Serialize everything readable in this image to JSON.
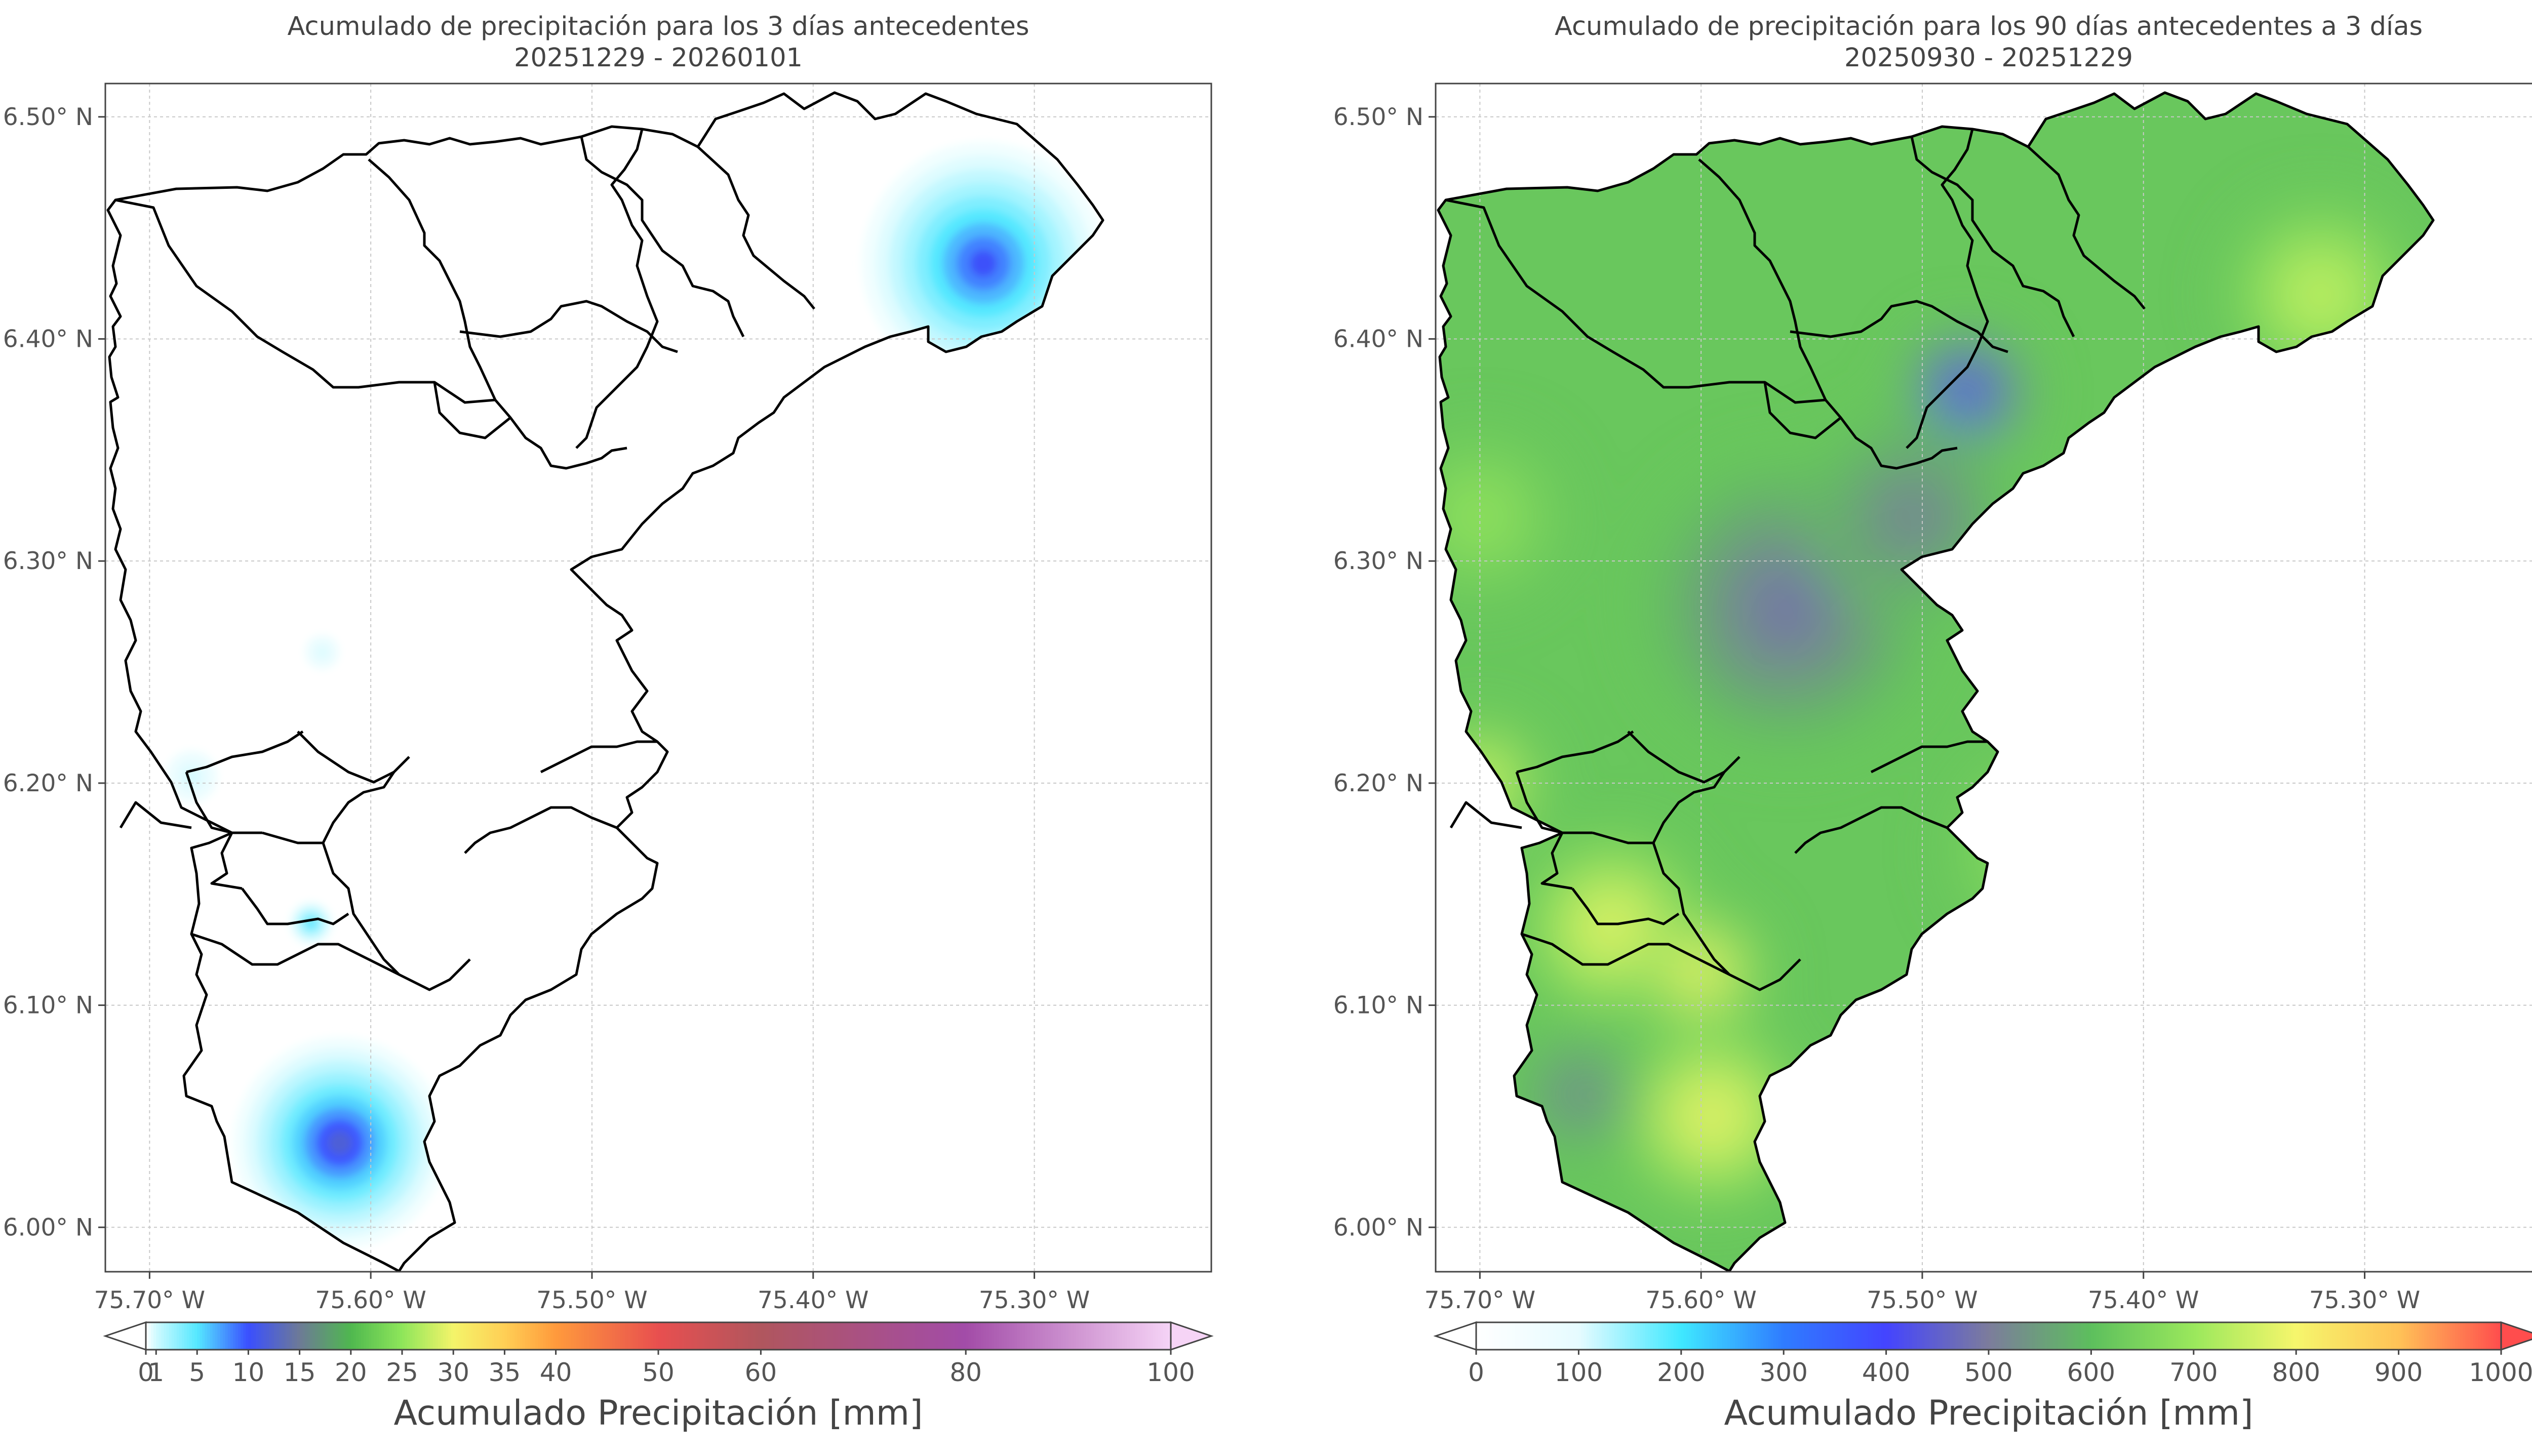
{
  "chart_data": [
    {
      "type": "heatmap",
      "title": "Acumulado de precipitación para los 3 días antecedentes",
      "subtitle": "20251229 - 20260101",
      "x_ticks": [
        "75.70° W",
        "75.60° W",
        "75.50° W",
        "75.40° W",
        "75.30° W"
      ],
      "x_tick_values": [
        -75.7,
        -75.6,
        -75.5,
        -75.4,
        -75.3
      ],
      "y_ticks": [
        "6.50° N",
        "6.40° N",
        "6.30° N",
        "6.20° N",
        "6.10° N",
        "6.00° N"
      ],
      "y_tick_values": [
        6.5,
        6.4,
        6.3,
        6.2,
        6.1,
        6.0
      ],
      "xlim": [
        -75.72,
        -75.22
      ],
      "ylim": [
        5.98,
        6.515
      ],
      "grid": true,
      "colorbar": {
        "label": "Acumulado Precipitación [mm]",
        "ticks": [
          "0",
          "1",
          "5",
          "10",
          "15",
          "20",
          "25",
          "30",
          "35",
          "40",
          "50",
          "60",
          "80",
          "100"
        ],
        "tick_values": [
          0,
          1,
          5,
          10,
          15,
          20,
          25,
          30,
          35,
          40,
          50,
          60,
          80,
          100
        ],
        "colors": [
          "#ffffff",
          "#cffaff",
          "#55e8ff",
          "#3a4fff",
          "#6d7a96",
          "#4fb84f",
          "#8ee65a",
          "#f4f46a",
          "#ffcf55",
          "#ff9a3c",
          "#e84f4f",
          "#b0565e",
          "#a24ca8",
          "#f6d4f6"
        ],
        "extend": "both"
      },
      "hotspots": [
        {
          "lon": -75.323,
          "lat": 6.434,
          "peak_mm": 12,
          "radius_deg": 0.055
        },
        {
          "lon": -75.614,
          "lat": 6.038,
          "peak_mm": 14,
          "radius_deg": 0.048
        },
        {
          "lon": -75.627,
          "lat": 6.137,
          "peak_mm": 6,
          "radius_deg": 0.01
        },
        {
          "lon": -75.681,
          "lat": 6.203,
          "peak_mm": 0.8,
          "radius_deg": 0.012
        },
        {
          "lon": -75.622,
          "lat": 6.259,
          "peak_mm": 0.6,
          "radius_deg": 0.008
        }
      ]
    },
    {
      "type": "heatmap",
      "title": "Acumulado de precipitación para los 90 días antecedentes a 3 días",
      "subtitle": "20250930 - 20251229",
      "x_ticks": [
        "75.70° W",
        "75.60° W",
        "75.50° W",
        "75.40° W",
        "75.30° W"
      ],
      "x_tick_values": [
        -75.7,
        -75.6,
        -75.5,
        -75.4,
        -75.3
      ],
      "y_ticks": [
        "6.50° N",
        "6.40° N",
        "6.30° N",
        "6.20° N",
        "6.10° N",
        "6.00° N"
      ],
      "y_tick_values": [
        6.5,
        6.4,
        6.3,
        6.2,
        6.1,
        6.0
      ],
      "xlim": [
        -75.72,
        -75.22
      ],
      "ylim": [
        5.98,
        6.515
      ],
      "grid": true,
      "colorbar": {
        "label": "Acumulado Precipitación [mm]",
        "ticks": [
          "0",
          "100",
          "200",
          "300",
          "400",
          "500",
          "600",
          "700",
          "800",
          "900",
          "1000"
        ],
        "tick_values": [
          0,
          100,
          200,
          300,
          400,
          500,
          600,
          700,
          800,
          900,
          1000
        ],
        "colors": [
          "#ffffff",
          "#e6fbff",
          "#3fe8ff",
          "#2f7cff",
          "#4444ff",
          "#7c7c9c",
          "#5dbf5d",
          "#9ae85c",
          "#f6f66c",
          "#ffc257",
          "#ff4d4d"
        ],
        "extend": "both"
      },
      "background_mm": 620,
      "hotspots": [
        {
          "lon": -75.48,
          "lat": 6.376,
          "peak_mm": 300,
          "radius_deg": 0.03
        },
        {
          "lon": -75.575,
          "lat": 6.255,
          "peak_mm": 330,
          "radius_deg": 0.03
        },
        {
          "lon": -75.56,
          "lat": 6.28,
          "peak_mm": 450,
          "radius_deg": 0.07
        },
        {
          "lon": -75.505,
          "lat": 6.32,
          "peak_mm": 480,
          "radius_deg": 0.05
        },
        {
          "lon": -75.32,
          "lat": 6.42,
          "peak_mm": 790,
          "radius_deg": 0.045
        },
        {
          "lon": -75.7,
          "lat": 6.2,
          "peak_mm": 820,
          "radius_deg": 0.03
        },
        {
          "lon": -75.64,
          "lat": 6.135,
          "peak_mm": 840,
          "radius_deg": 0.045
        },
        {
          "lon": -75.6,
          "lat": 6.115,
          "peak_mm": 870,
          "radius_deg": 0.03
        },
        {
          "lon": -75.595,
          "lat": 6.05,
          "peak_mm": 850,
          "radius_deg": 0.045
        },
        {
          "lon": -75.655,
          "lat": 6.06,
          "peak_mm": 480,
          "radius_deg": 0.03
        },
        {
          "lon": -75.44,
          "lat": 6.17,
          "peak_mm": 720,
          "radius_deg": 0.05
        },
        {
          "lon": -75.7,
          "lat": 6.32,
          "peak_mm": 710,
          "radius_deg": 0.04
        }
      ]
    }
  ]
}
